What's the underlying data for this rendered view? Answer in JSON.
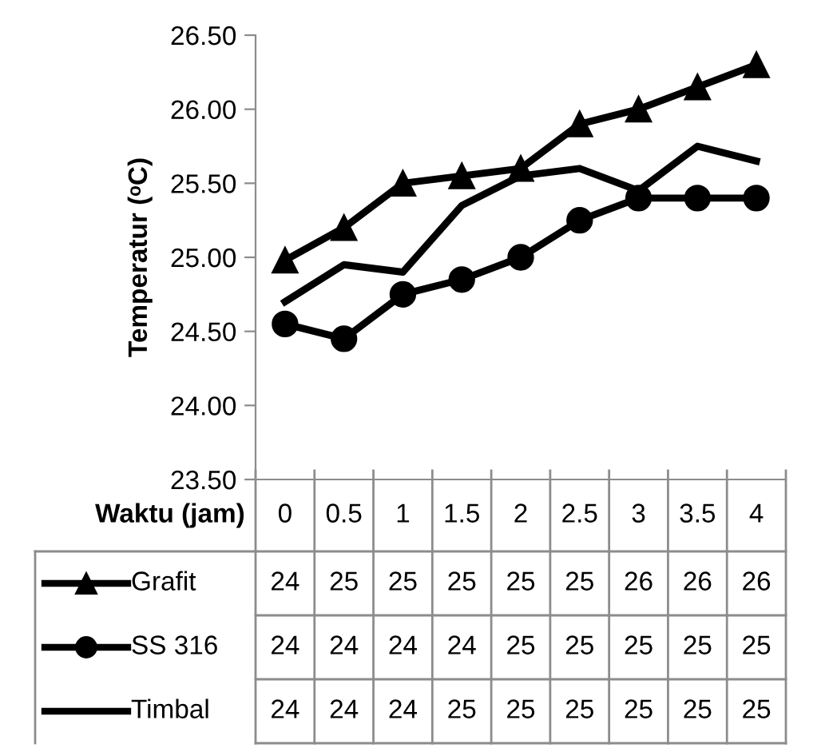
{
  "chart_data": {
    "type": "line",
    "ylabel": "Temperatur (ᵒC)",
    "xlabel": "Waktu (jam)",
    "categories": [
      "0",
      "0.5",
      "1",
      "1.5",
      "2",
      "2.5",
      "3",
      "3.5",
      "4"
    ],
    "ylim": [
      23.5,
      26.5
    ],
    "yticks": [
      {
        "value": 23.5,
        "label": "23.50"
      },
      {
        "value": 24.0,
        "label": "24.00"
      },
      {
        "value": 24.5,
        "label": "24.50"
      },
      {
        "value": 25.0,
        "label": "25.00"
      },
      {
        "value": 25.5,
        "label": "25.50"
      },
      {
        "value": 26.0,
        "label": "26.00"
      },
      {
        "value": 26.5,
        "label": "26.50"
      }
    ],
    "grid": false,
    "legend": "bottom",
    "series": [
      {
        "name": "Grafit",
        "color": "#000000",
        "marker": "triangle",
        "values": [
          24.98,
          25.2,
          25.5,
          25.55,
          25.6,
          25.9,
          26.0,
          26.15,
          26.3
        ]
      },
      {
        "name": "SS 316",
        "color": "#000000",
        "marker": "circle",
        "values": [
          24.55,
          24.45,
          24.75,
          24.85,
          25.0,
          25.25,
          25.4,
          25.4,
          25.4
        ]
      },
      {
        "name": "Timbal",
        "color": "#000000",
        "marker": "none",
        "values": [
          24.7,
          24.95,
          24.9,
          25.35,
          25.55,
          25.6,
          25.45,
          25.75,
          25.65
        ]
      }
    ],
    "annotations": [
      "24",
      "25",
      "25",
      "25",
      "25",
      "25",
      "26",
      "26",
      "26",
      "24",
      "24",
      "24",
      "24",
      "25",
      "25",
      "25",
      "25",
      "25",
      "24",
      "24",
      "24",
      "25",
      "25",
      "25",
      "25",
      "25",
      "25"
    ]
  }
}
